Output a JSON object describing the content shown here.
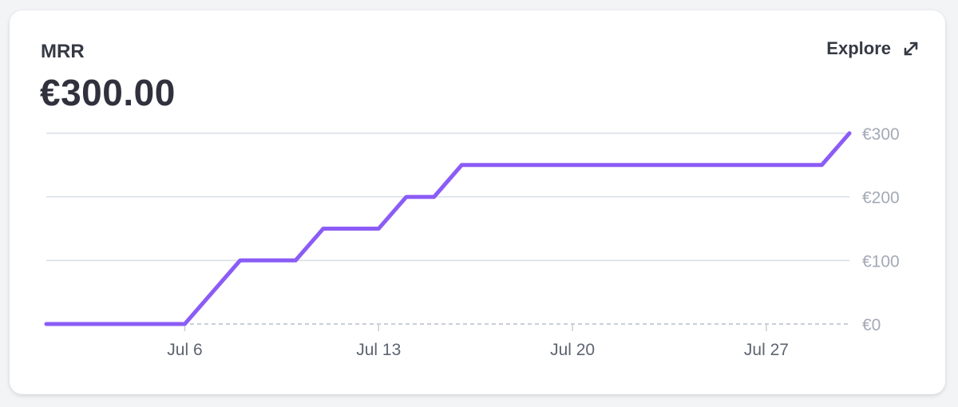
{
  "card": {
    "title": "MRR",
    "value": "€300.00",
    "explore_label": "Explore",
    "expand_icon": "expand-arrows-icon"
  },
  "colors": {
    "line": "#8b5cf6",
    "grid": "#d8dee6",
    "zero_line": "#c9ced6",
    "y_tick": "#a3a9b6",
    "x_tick": "#5e6470"
  },
  "chart_data": {
    "type": "line",
    "title": "",
    "xlabel": "",
    "ylabel": "",
    "x_ticks": [
      "Jul 6",
      "Jul 13",
      "Jul 20",
      "Jul 27"
    ],
    "x_tick_dates": [
      "2024-07-06",
      "2024-07-13",
      "2024-07-20",
      "2024-07-27"
    ],
    "y_ticks": [
      "€300",
      "€200",
      "€100",
      "€0"
    ],
    "y_tick_values": [
      300,
      200,
      100,
      0
    ],
    "ylim": [
      0,
      300
    ],
    "xlim": [
      "2024-07-01",
      "2024-07-30"
    ],
    "grid": true,
    "y_axis_position": "right",
    "series": [
      {
        "x": [
          "2024-07-01",
          "2024-07-06",
          "2024-07-08",
          "2024-07-10",
          "2024-07-11",
          "2024-07-13",
          "2024-07-14",
          "2024-07-15",
          "2024-07-16",
          "2024-07-29",
          "2024-07-30"
        ],
        "values": [
          0,
          0,
          100,
          100,
          150,
          150,
          200,
          200,
          250,
          250,
          300
        ]
      }
    ]
  }
}
